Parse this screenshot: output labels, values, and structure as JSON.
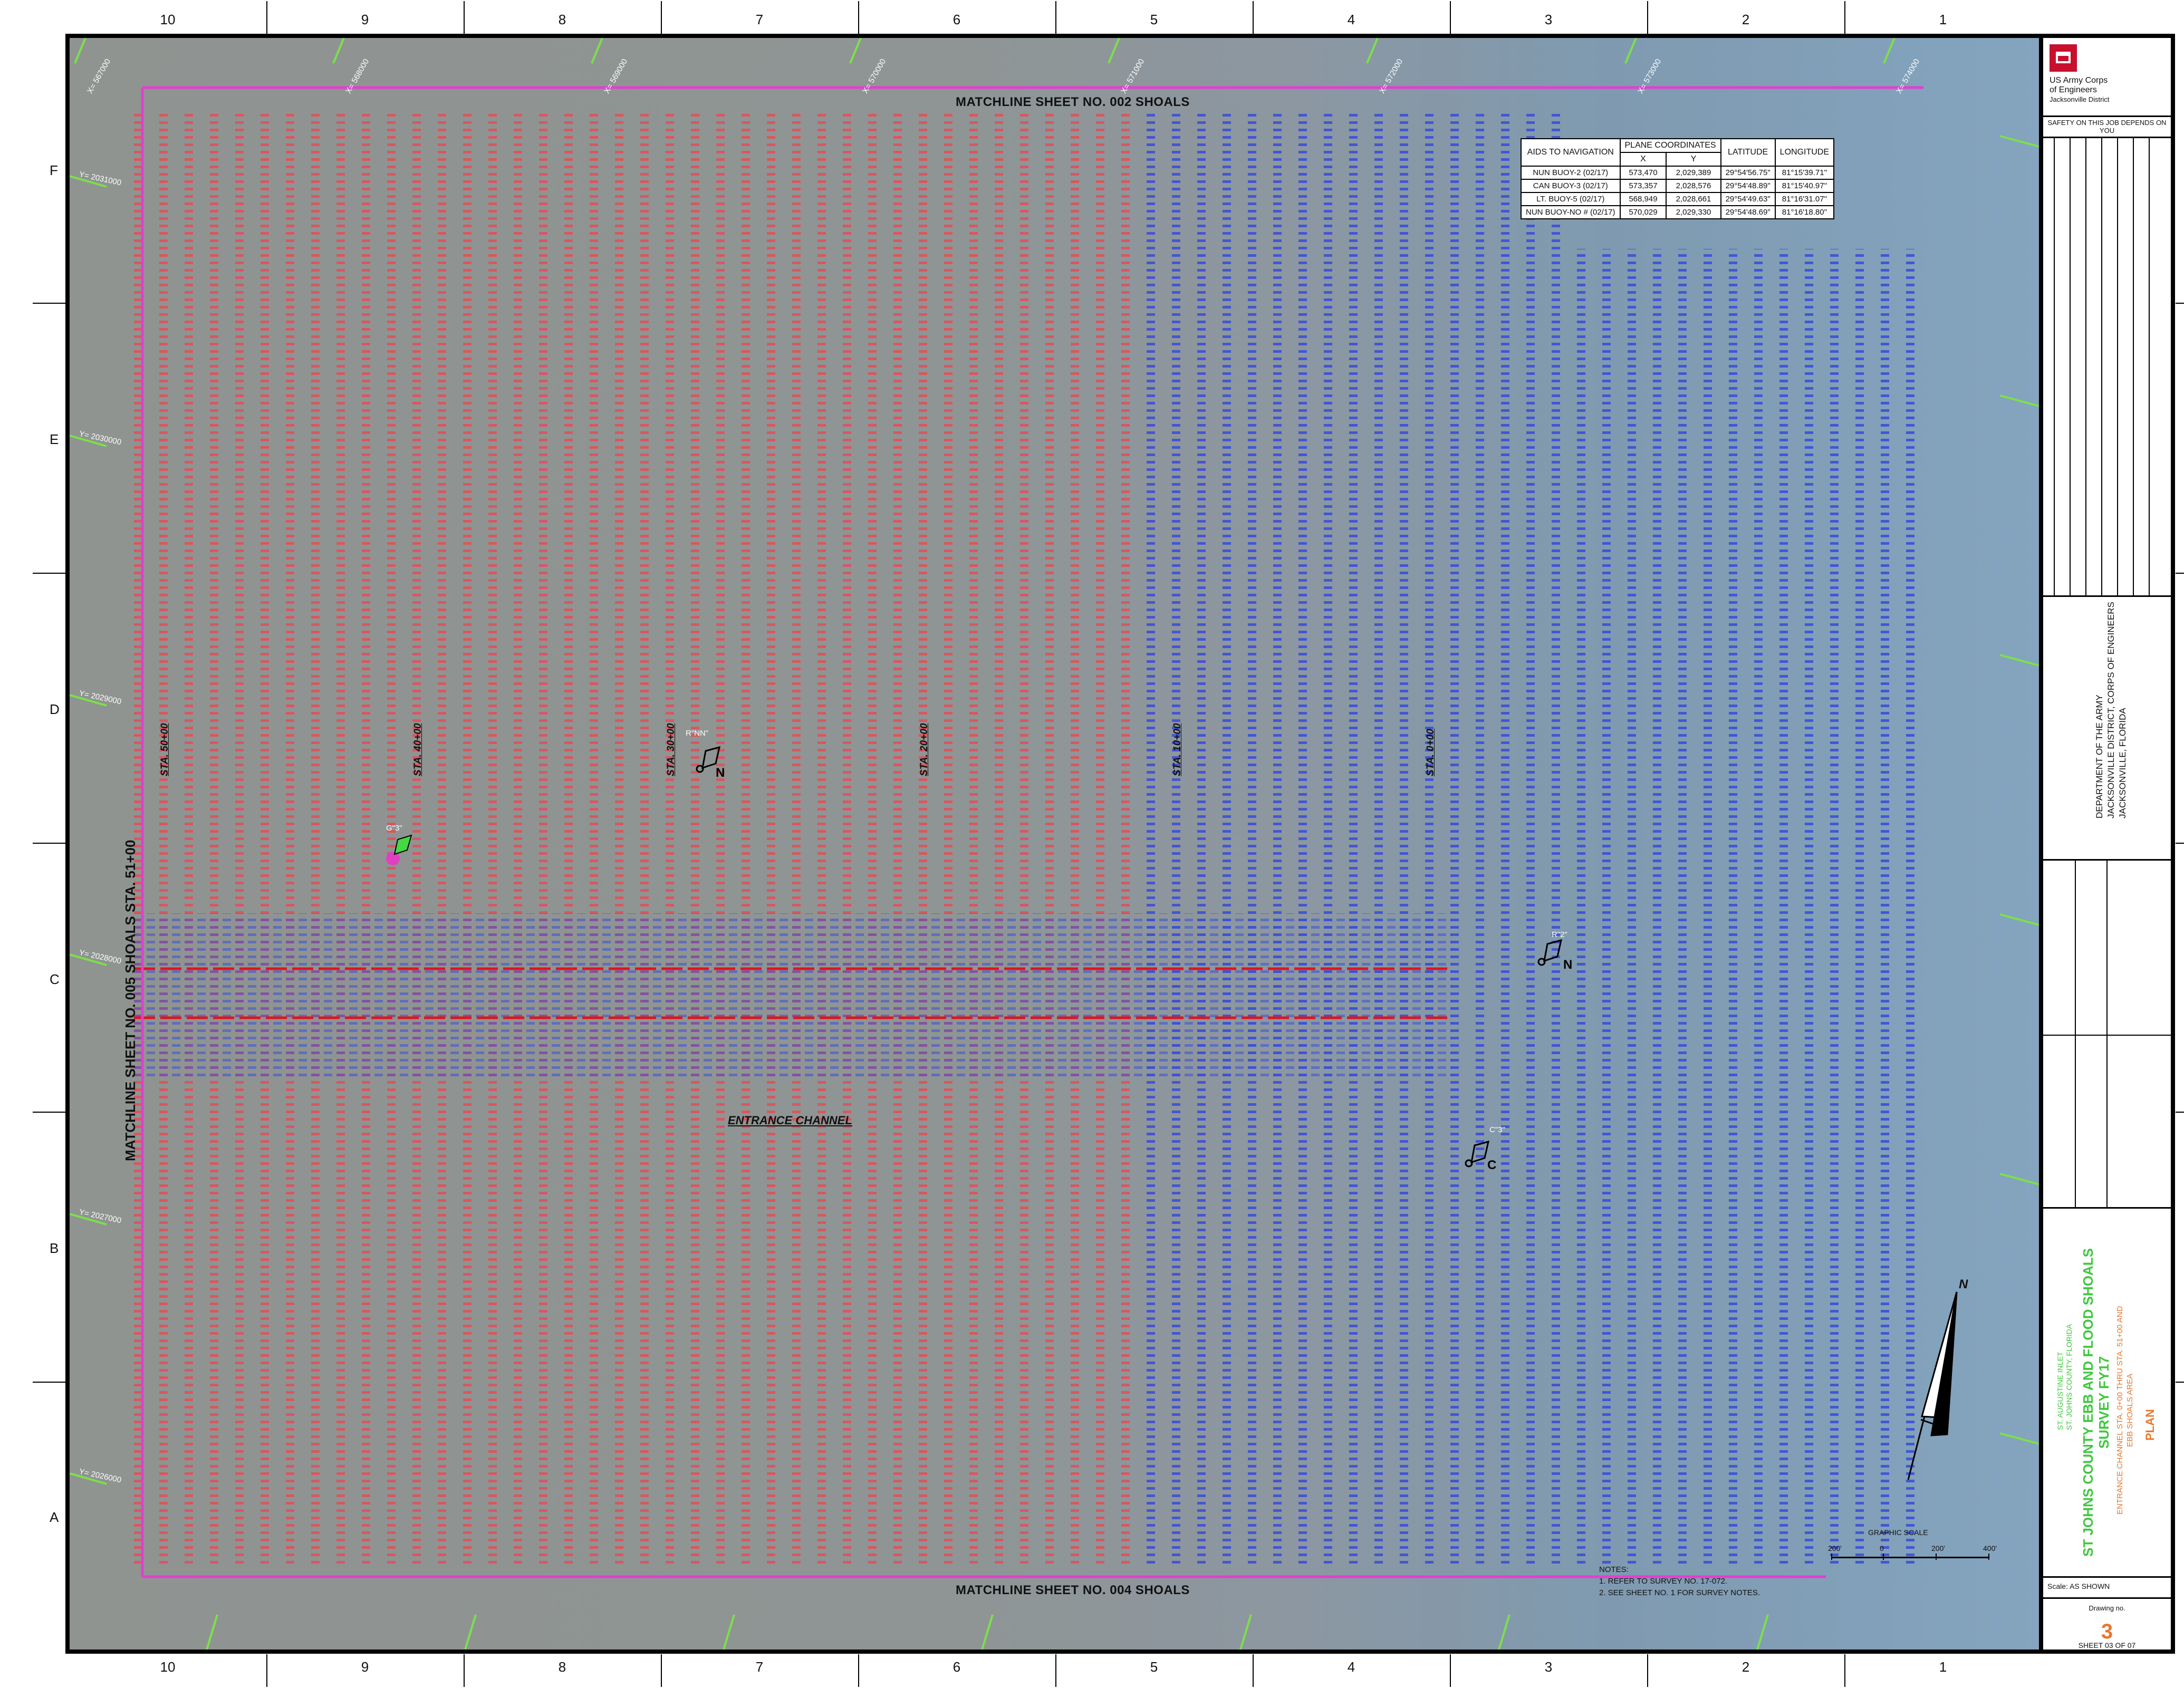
{
  "grid": {
    "columns": [
      "10",
      "9",
      "8",
      "7",
      "6",
      "5",
      "4",
      "3",
      "2",
      "1"
    ],
    "rows": [
      "F",
      "E",
      "D",
      "C",
      "B",
      "A"
    ]
  },
  "map": {
    "matchline_top": "MATCHLINE SHEET NO. 002 SHOALS",
    "matchline_bottom": "MATCHLINE SHEET NO. 004 SHOALS",
    "matchline_left": "MATCHLINE SHEET NO. 005 SHOALS STA. 51+00",
    "stations": [
      "STA. 50+00",
      "STA. 40+00",
      "STA. 30+00",
      "STA. 20+00",
      "STA. 10+00",
      "STA. 0+00"
    ],
    "entrance_channel": "ENTRANCE CHANNEL",
    "x_coords": [
      "X= 567000",
      "X= 568000",
      "X= 569000",
      "X= 570000",
      "X= 571000",
      "X= 572000",
      "X= 573000",
      "X= 574000"
    ],
    "y_coords": [
      "Y= 2031000",
      "Y= 2030000",
      "Y= 2029000",
      "Y= 2028000",
      "Y= 2027000",
      "Y= 2026000"
    ],
    "buoys": [
      {
        "label": "R\"NN\"",
        "letter": "N"
      },
      {
        "label": "G\"3\"",
        "letter": ""
      },
      {
        "label": "R\"2\"",
        "letter": "N"
      },
      {
        "label": "C\"3\"",
        "letter": "C"
      }
    ],
    "sample_soundings_left": [
      "11.9",
      "12.4",
      "13.1",
      "14.0",
      "15.2",
      "16.8",
      "17.5",
      "18.3",
      "19.1",
      "20.4"
    ],
    "sample_soundings_right": [
      "31.2",
      "32.8",
      "33.5",
      "34.9",
      "35.6",
      "36.3",
      "37.8",
      "38.1",
      "40.0",
      "41.7"
    ]
  },
  "aids_table": {
    "headers": [
      "AIDS TO NAVIGATION",
      "PLANE COORDINATES",
      "LATITUDE",
      "LONGITUDE"
    ],
    "subheaders": [
      "X",
      "Y"
    ],
    "rows": [
      [
        "NUN BUOY-2 (02/17)",
        "573,470",
        "2,029,389",
        "29°54'56.75\"",
        "81°15'39.71\""
      ],
      [
        "CAN BUOY-3 (02/17)",
        "573,357",
        "2,028,576",
        "29°54'48.89\"",
        "81°15'40.97\""
      ],
      [
        "LT. BUOY-5 (02/17)",
        "568,949",
        "2,028,661",
        "29°54'49.63\"",
        "81°16'31.07\""
      ],
      [
        "NUN BUOY-NO # (02/17)",
        "570,029",
        "2,029,330",
        "29°54'48.69\"",
        "81°16'18.80\""
      ]
    ]
  },
  "notes": {
    "title": "NOTES:",
    "items": [
      "1. REFER TO SURVEY NO. 17-072.",
      "2. SEE SHEET NO. 1 FOR SURVEY NOTES."
    ]
  },
  "scale": {
    "title": "GRAPHIC SCALE",
    "ticks": [
      "200'",
      "0",
      "200'",
      "400'"
    ]
  },
  "north_arrow": "N",
  "title_block": {
    "agency_line1": "US Army Corps",
    "agency_line2": "of Engineers",
    "district": "Jacksonville District",
    "safety": "SAFETY ON THIS JOB DEPENDS ON YOU",
    "dept1": "DEPARTMENT OF THE ARMY",
    "dept2": "JACKSONVILLE DISTRICT, CORPS OF ENGINEERS",
    "dept3": "JACKSONVILLE, FLORIDA",
    "project1": "ST. AUGUSTINE INLET",
    "project2": "ST. JOHNS COUNTY, FLORIDA",
    "title_main1": "ST JOHNS COUNTY EBB AND FLOOD SHOALS",
    "title_main2": "SURVEY FY17",
    "title_sub1": "ENTRANCE CHANNEL STA. 0+00 THRU STA. 51+00 AND",
    "title_sub2": "EBB SHOALS AREA",
    "title_plan": "PLAN",
    "scale_label": "Scale:",
    "scale_value": "AS SHOWN",
    "drawing_no_label": "Drawing no.",
    "drawing_no": "3",
    "sheet": "SHEET  03  OF  07"
  },
  "colors": {
    "shoal_sounding": "#e0505a",
    "deep_sounding": "#3b4fd8",
    "channel_line": "#e0151a",
    "matchline": "#e23fd0",
    "grid_green": "#7ce04a",
    "title_green": "#3ec83e",
    "title_orange": "#e8772e"
  }
}
